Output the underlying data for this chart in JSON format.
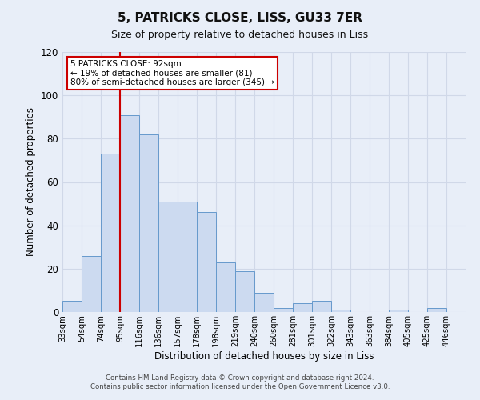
{
  "title": "5, PATRICKS CLOSE, LISS, GU33 7ER",
  "subtitle": "Size of property relative to detached houses in Liss",
  "xlabel": "Distribution of detached houses by size in Liss",
  "ylabel": "Number of detached properties",
  "bin_labels": [
    "33sqm",
    "54sqm",
    "74sqm",
    "95sqm",
    "116sqm",
    "136sqm",
    "157sqm",
    "178sqm",
    "198sqm",
    "219sqm",
    "240sqm",
    "260sqm",
    "281sqm",
    "301sqm",
    "322sqm",
    "343sqm",
    "363sqm",
    "384sqm",
    "405sqm",
    "425sqm",
    "446sqm"
  ],
  "bar_values": [
    5,
    26,
    73,
    91,
    82,
    51,
    51,
    46,
    23,
    19,
    9,
    2,
    4,
    5,
    1,
    0,
    0,
    1,
    0,
    2,
    0
  ],
  "bar_color": "#ccdaf0",
  "bar_edge_color": "#6699cc",
  "vline_x_index": 3,
  "vline_color": "#cc0000",
  "annotation_text": "5 PATRICKS CLOSE: 92sqm\n← 19% of detached houses are smaller (81)\n80% of semi-detached houses are larger (345) →",
  "annotation_box_color": "#ffffff",
  "annotation_box_edge": "#cc0000",
  "ylim": [
    0,
    120
  ],
  "yticks": [
    0,
    20,
    40,
    60,
    80,
    100,
    120
  ],
  "footer_line1": "Contains HM Land Registry data © Crown copyright and database right 2024.",
  "footer_line2": "Contains public sector information licensed under the Open Government Licence v3.0.",
  "background_color": "#e8eef8",
  "grid_color": "#d0d8e8",
  "title_fontsize": 11,
  "subtitle_fontsize": 9
}
